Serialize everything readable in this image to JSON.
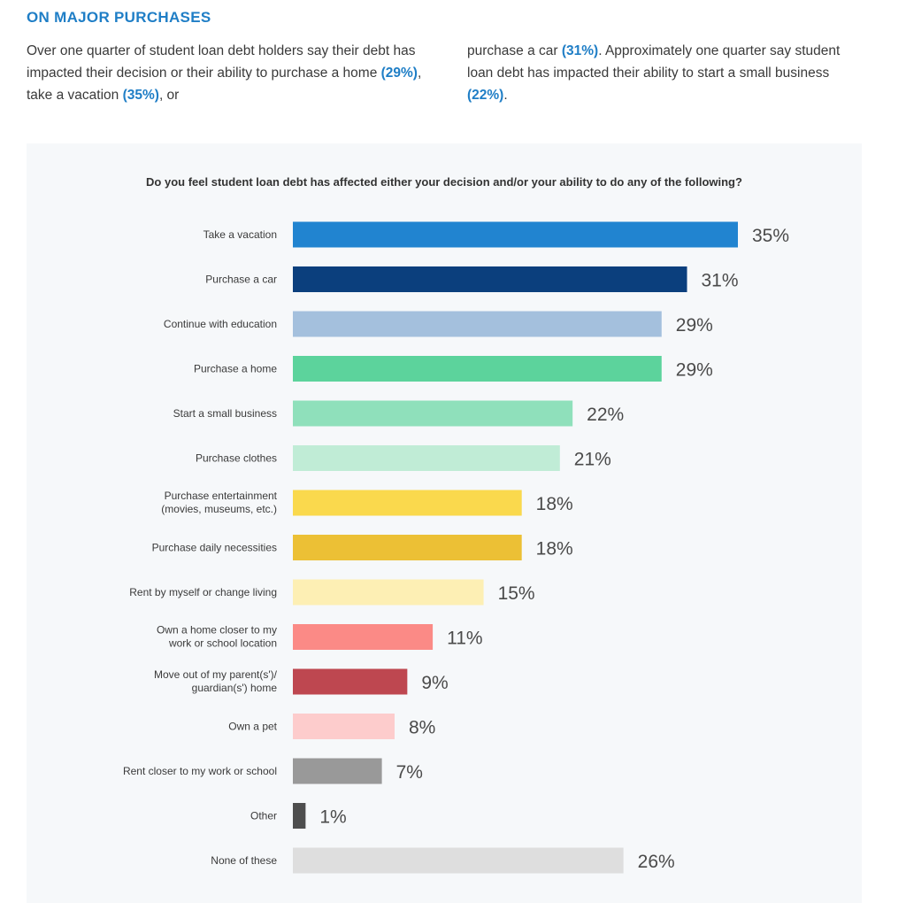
{
  "header": {
    "title": "ON MAJOR PURCHASES"
  },
  "intro": {
    "left": {
      "p1": "Over one quarter of student loan debt holders say their debt has impacted their decision or their ability to purchase a home ",
      "v1": "(29%)",
      "p2": ", take a vacation ",
      "v2": "(35%)",
      "p3": ", or"
    },
    "right": {
      "p1": "purchase a car ",
      "v1": "(31%)",
      "p2": ". Approximately one quarter say student loan debt has impacted their ability to start a small business ",
      "v2": "(22%)",
      "p3": "."
    }
  },
  "chart_data": {
    "type": "bar",
    "orientation": "horizontal",
    "title": "Do you feel student loan debt has affected either your decision and/or your ability to do any of the following?",
    "categories": [
      [
        "Take a vacation"
      ],
      [
        "Purchase a car"
      ],
      [
        "Continue with education"
      ],
      [
        "Purchase a home"
      ],
      [
        "Start a small business"
      ],
      [
        "Purchase clothes"
      ],
      [
        "Purchase entertainment",
        "(movies, museums, etc.)"
      ],
      [
        "Purchase daily necessities"
      ],
      [
        "Rent by myself or change living"
      ],
      [
        "Own a home closer to my",
        "work or school location"
      ],
      [
        "Move out of my parent(s')/",
        "guardian(s') home"
      ],
      [
        "Own a pet"
      ],
      [
        "Rent closer to my work or school"
      ],
      [
        "Other"
      ],
      [
        "None of these"
      ]
    ],
    "values": [
      35,
      31,
      29,
      29,
      22,
      21,
      18,
      18,
      15,
      11,
      9,
      8,
      7,
      1,
      26
    ],
    "value_labels": [
      "35%",
      "31%",
      "29%",
      "29%",
      "22%",
      "21%",
      "18%",
      "18%",
      "15%",
      "11%",
      "9%",
      "8%",
      "7%",
      "1%",
      "26%"
    ],
    "colors": [
      "#2184d0",
      "#0b3f7d",
      "#a4c0dd",
      "#5cd39c",
      "#8fe0bb",
      "#c0ecd6",
      "#fad94d",
      "#ecc035",
      "#fdefb4",
      "#fb8a86",
      "#be4750",
      "#fdcccc",
      "#999999",
      "#4e4e4e",
      "#dedede"
    ],
    "xlim": [
      0,
      35
    ],
    "grid": false,
    "legend": "none"
  }
}
